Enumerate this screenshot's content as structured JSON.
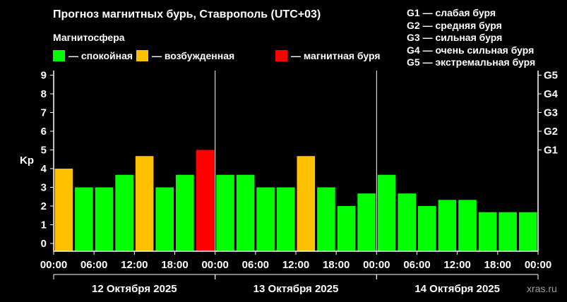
{
  "title": "Прогноз магнитных бурь, Ставрополь (UTC+03)",
  "magnetosphere_title": "Магнитосфера",
  "legend": [
    {
      "color": "#00ff00",
      "label": "— спокойная"
    },
    {
      "color": "#ffc000",
      "label": "— возбужденная"
    },
    {
      "color": "#ff0000",
      "label": "— магнитная буря"
    }
  ],
  "g_scale": [
    "G1 — слабая буря",
    "G2 — средняя буря",
    "G3 — сильная буря",
    "G4 — очень сильная буря",
    "G5 — экстремальная буря"
  ],
  "watermark": "xras.ru",
  "chart_data": {
    "type": "bar",
    "title": "Прогноз магнитных бурь, Ставрополь (UTC+03)",
    "ylabel": "Kp",
    "ylim": [
      0,
      9
    ],
    "y_ticks": [
      "0",
      "1",
      "2",
      "3",
      "4",
      "5",
      "6",
      "7",
      "8",
      "9"
    ],
    "right_ticks": [
      {
        "label": "G1",
        "value": 5
      },
      {
        "label": "G2",
        "value": 6
      },
      {
        "label": "G3",
        "value": 7
      },
      {
        "label": "G4",
        "value": 8
      },
      {
        "label": "G5",
        "value": 9
      }
    ],
    "x_tick_labels": [
      "00:00",
      "06:00",
      "12:00",
      "18:00",
      "00:00",
      "06:00",
      "12:00",
      "18:00",
      "00:00",
      "06:00",
      "12:00",
      "18:00",
      "00:00"
    ],
    "days": [
      "12 Октября 2025",
      "13 Октября 2025",
      "14 Октября 2025"
    ],
    "colors": {
      "quiet": "#00ff00",
      "active": "#ffc000",
      "storm": "#ff0000"
    },
    "values": [
      4.0,
      3.0,
      3.0,
      3.67,
      4.67,
      3.0,
      3.67,
      5.0,
      3.67,
      3.67,
      3.0,
      3.0,
      4.67,
      3.0,
      2.0,
      2.67,
      3.67,
      2.67,
      2.0,
      2.33,
      2.33,
      1.67,
      1.67,
      1.67
    ],
    "levels": [
      "active",
      "quiet",
      "quiet",
      "quiet",
      "active",
      "quiet",
      "quiet",
      "storm",
      "quiet",
      "quiet",
      "quiet",
      "quiet",
      "active",
      "quiet",
      "quiet",
      "quiet",
      "quiet",
      "quiet",
      "quiet",
      "quiet",
      "quiet",
      "quiet",
      "quiet",
      "quiet"
    ],
    "grid": false,
    "day_separators": true
  }
}
